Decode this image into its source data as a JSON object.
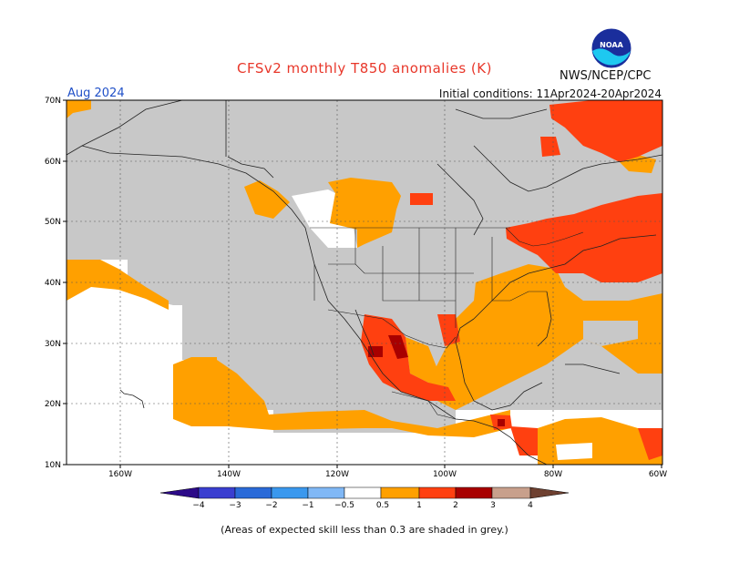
{
  "title": "CFSv2 monthly T850 anomalies (K)",
  "agency": "NWS/NCEP/CPC",
  "logo_text": "NOAA",
  "month": "Aug 2024",
  "initial_conditions": "Initial conditions: 11Apr2024-20Apr2024",
  "lat_labels": [
    "70N",
    "60N",
    "50N",
    "40N",
    "30N",
    "20N",
    "10N"
  ],
  "lon_labels": [
    "160W",
    "140W",
    "120W",
    "100W",
    "80W",
    "60W"
  ],
  "legend": {
    "labels": [
      "−4",
      "−3",
      "−2",
      "−1",
      "−0.5",
      "0.5",
      "1",
      "2",
      "3",
      "4"
    ],
    "colors": {
      "lt_m4": "#2c0a88",
      "m4_m3": "#3a3ed0",
      "m3_m2": "#2a6ad8",
      "m2_m1": "#3a98ee",
      "m1_m05": "#80b8f6",
      "neutral": "#ffffff",
      "p05_p1": "#ffa000",
      "p1_p2": "#ff4010",
      "p2_p3": "#a80000",
      "p3_p4": "#c8a08c",
      "gt_p4": "#6e4030"
    }
  },
  "colors": {
    "skill_grey": "#c8c8c8",
    "neutral": "#ffffff",
    "warm1": "#ffa000",
    "warm2": "#ff4010",
    "warm3": "#a80000"
  },
  "note": "(Areas of expected skill less than 0.3 are shaded in grey.)"
}
